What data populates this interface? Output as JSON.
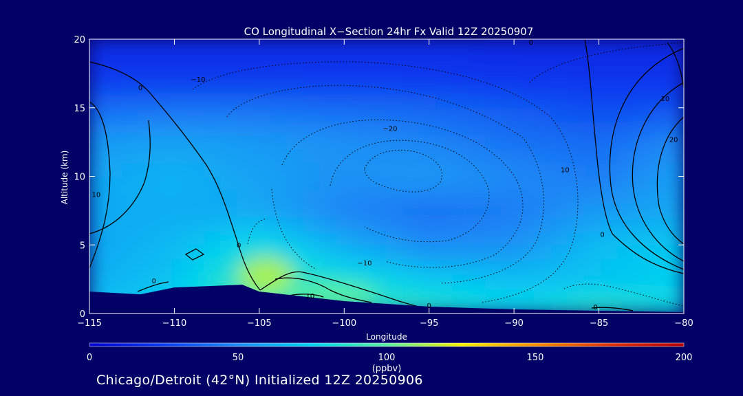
{
  "chart_data": {
    "type": "heatmap",
    "title": "CO Longitudinal X−Section 24hr  Fx Valid 12Z 20250907",
    "xlabel": "Longitude",
    "ylabel": "Altitude (km)",
    "xlim": [
      -115,
      -80
    ],
    "ylim": [
      0,
      20
    ],
    "x_ticks": [
      {
        "v": -115,
        "label": "−115"
      },
      {
        "v": -110,
        "label": "−110"
      },
      {
        "v": -105,
        "label": "−105"
      },
      {
        "v": -100,
        "label": "−100"
      },
      {
        "v": -95,
        "label": "−95"
      },
      {
        "v": -90,
        "label": "−90"
      },
      {
        "v": -85,
        "label": "−85"
      },
      {
        "v": -80,
        "label": "−80"
      }
    ],
    "y_ticks": [
      {
        "v": 0,
        "label": "0"
      },
      {
        "v": 5,
        "label": "5"
      },
      {
        "v": 10,
        "label": "10"
      },
      {
        "v": 15,
        "label": "15"
      },
      {
        "v": 20,
        "label": "20"
      }
    ],
    "colorbar": {
      "min": 0,
      "max": 200,
      "ticks": [
        {
          "v": 0,
          "label": "0"
        },
        {
          "v": 50,
          "label": "50"
        },
        {
          "v": 100,
          "label": "100"
        },
        {
          "v": 150,
          "label": "150"
        },
        {
          "v": 200,
          "label": "200"
        }
      ],
      "unit": "(ppbv)",
      "colors": [
        "#0000cc",
        "#0a3cf0",
        "#1e8cf5",
        "#00d2f0",
        "#5af0a0",
        "#f5f000",
        "#f58c00",
        "#dc3200",
        "#b40000"
      ]
    },
    "terrain_km": [
      [
        -115,
        1.6
      ],
      [
        -112,
        1.4
      ],
      [
        -110,
        1.9
      ],
      [
        -106,
        2.1
      ],
      [
        -105,
        1.6
      ],
      [
        -100,
        0.9
      ],
      [
        -95,
        0.5
      ],
      [
        -90,
        0.3
      ],
      [
        -85,
        0.2
      ],
      [
        -80,
        0.1
      ]
    ],
    "co_grid_lon": [
      -115,
      -110,
      -105,
      -100,
      -95,
      -90,
      -85,
      -80
    ],
    "co_grid_alt": [
      0,
      2.5,
      5,
      7.5,
      10,
      12.5,
      15,
      17.5,
      20
    ],
    "co_ppbv": [
      [
        70,
        78,
        98,
        95,
        90,
        80,
        92,
        80
      ],
      [
        62,
        70,
        95,
        82,
        72,
        68,
        70,
        75
      ],
      [
        60,
        66,
        80,
        62,
        50,
        52,
        68,
        72
      ],
      [
        60,
        62,
        60,
        48,
        42,
        45,
        55,
        60
      ],
      [
        60,
        64,
        58,
        52,
        55,
        50,
        45,
        58
      ],
      [
        55,
        58,
        55,
        52,
        48,
        42,
        40,
        50
      ],
      [
        40,
        42,
        42,
        40,
        38,
        35,
        30,
        32
      ],
      [
        22,
        22,
        22,
        22,
        22,
        20,
        20,
        20
      ],
      [
        18,
        18,
        18,
        18,
        18,
        18,
        18,
        18
      ]
    ],
    "contour_labels": [
      {
        "x": -112,
        "y": 16.3,
        "text": "0"
      },
      {
        "x": -108.6,
        "y": 16.9,
        "text": "−10"
      },
      {
        "x": -114.6,
        "y": 8.5,
        "text": "10"
      },
      {
        "x": -106.2,
        "y": 4.8,
        "text": "0"
      },
      {
        "x": -111.2,
        "y": 2.2,
        "text": "0"
      },
      {
        "x": -102,
        "y": 1.1,
        "text": "10"
      },
      {
        "x": -95,
        "y": 0.4,
        "text": "0"
      },
      {
        "x": -97.3,
        "y": 13.3,
        "text": "−20"
      },
      {
        "x": -98.8,
        "y": 3.5,
        "text": "−10"
      },
      {
        "x": -87,
        "y": 10.3,
        "text": "10"
      },
      {
        "x": -89,
        "y": 19.6,
        "text": "0"
      },
      {
        "x": -84.8,
        "y": 5.6,
        "text": "0"
      },
      {
        "x": -81.1,
        "y": 15.5,
        "text": "10"
      },
      {
        "x": -80.6,
        "y": 12.5,
        "text": "20"
      },
      {
        "x": -85.2,
        "y": 0.3,
        "text": "0"
      }
    ]
  },
  "footer": "Chicago/Detroit (42°N) Initialized 12Z 20250906"
}
